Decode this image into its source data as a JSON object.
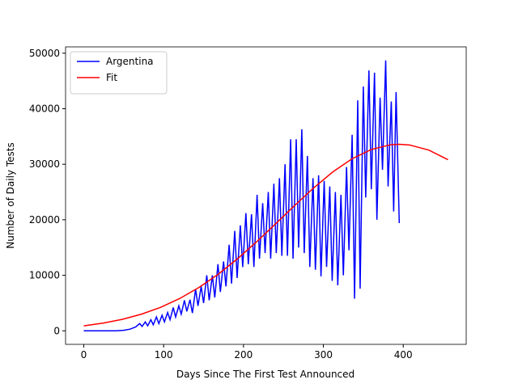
{
  "chart_data": {
    "type": "line",
    "xlabel": "Days Since The First Test Announced",
    "ylabel": "Number of Daily Tests",
    "xlim": [
      -22.8,
      478.8
    ],
    "xticks": [
      0,
      100,
      200,
      300,
      400
    ],
    "ylim": [
      -2435,
      51135
    ],
    "yticks": [
      0,
      10000,
      20000,
      30000,
      40000,
      50000
    ],
    "legend": "upper left",
    "series": [
      {
        "name": "Argentina",
        "color": "#0000ff",
        "x": [
          0,
          10,
          20,
          30,
          40,
          50,
          58,
          65,
          70,
          73,
          77,
          80,
          84,
          87,
          91,
          94,
          98,
          101,
          105,
          108,
          112,
          115,
          119,
          122,
          126,
          129,
          133,
          136,
          140,
          143,
          147,
          150,
          154,
          157,
          161,
          164,
          168,
          171,
          175,
          178,
          182,
          185,
          189,
          192,
          196,
          199,
          203,
          206,
          210,
          213,
          217,
          220,
          224,
          227,
          231,
          234,
          238,
          241,
          245,
          248,
          252,
          255,
          259,
          262,
          266,
          269,
          273,
          276,
          280,
          283,
          287,
          290,
          294,
          297,
          301,
          304,
          308,
          311,
          315,
          318,
          322,
          325,
          329,
          332,
          336,
          339,
          343,
          346,
          350,
          353,
          357,
          360,
          364,
          367,
          371,
          374,
          378,
          381,
          385,
          388,
          391,
          395
        ],
        "values": [
          0,
          0,
          0,
          0,
          0,
          100,
          300,
          700,
          1300,
          800,
          1600,
          900,
          2000,
          1100,
          2500,
          1300,
          2800,
          1600,
          3300,
          2000,
          4200,
          2500,
          4500,
          3000,
          5500,
          3500,
          5600,
          3200,
          7500,
          4500,
          8000,
          5000,
          10000,
          5500,
          10000,
          6000,
          12000,
          7000,
          12500,
          8000,
          15500,
          8500,
          18000,
          9500,
          19000,
          11500,
          21200,
          12000,
          21000,
          11500,
          24500,
          13000,
          23000,
          14000,
          25000,
          13000,
          26500,
          14000,
          27500,
          13500,
          30000,
          13500,
          34500,
          13000,
          34500,
          15000,
          36300,
          14000,
          31500,
          11500,
          27500,
          11000,
          28000,
          9800,
          27000,
          11500,
          26000,
          9000,
          25000,
          8200,
          24500,
          10000,
          29500,
          14500,
          35300,
          5800,
          41500,
          7600,
          44000,
          24000,
          46900,
          25500,
          46500,
          20000,
          42000,
          29000,
          48700,
          26000,
          41300,
          21500,
          43000,
          19400
        ]
      },
      {
        "name": "Fit",
        "color": "#ff0000",
        "x": [
          0,
          24,
          48,
          72,
          96,
          120,
          144,
          168,
          192,
          216,
          240,
          264,
          288,
          312,
          336,
          360,
          384,
          395,
          408,
          432,
          456
        ],
        "values": [
          900,
          1380,
          2060,
          2990,
          4220,
          5810,
          7790,
          10160,
          12920,
          15980,
          19250,
          22570,
          25760,
          28640,
          30990,
          32660,
          33510,
          33600,
          33470,
          32550,
          30820
        ]
      }
    ]
  }
}
